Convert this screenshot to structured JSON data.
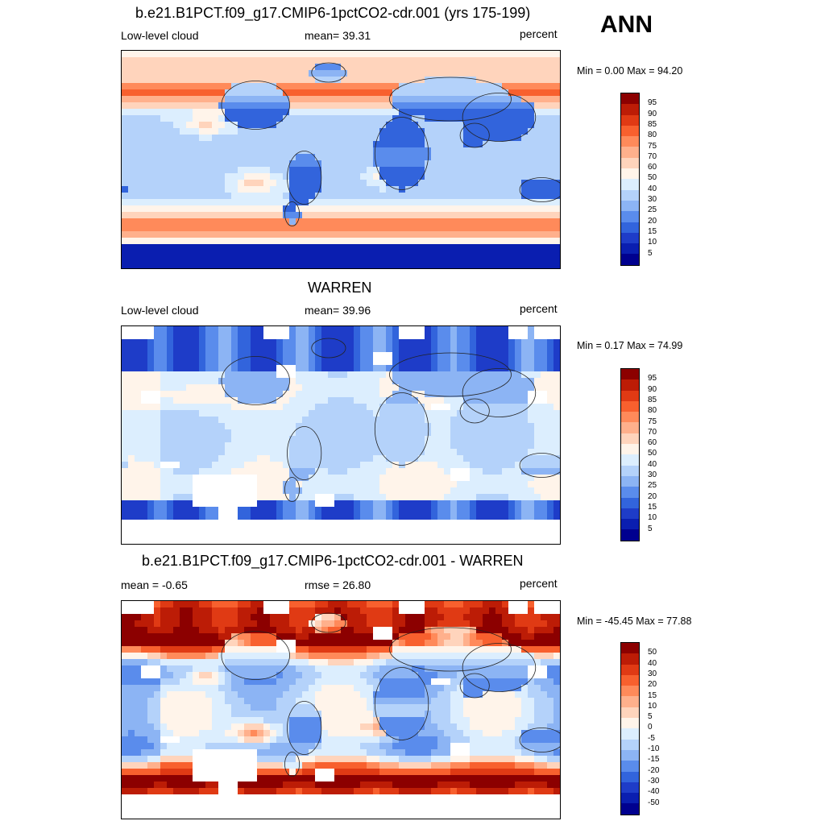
{
  "season": "ANN",
  "palette_warm_cool": [
    "#00008f",
    "#0a1eb0",
    "#1e3cc8",
    "#3264dc",
    "#5a8cec",
    "#8cb4f4",
    "#b4d2fa",
    "#dceefe",
    "#fff4ea",
    "#ffd4bc",
    "#ffb08c",
    "#ff8a5a",
    "#f8602e",
    "#e03a14",
    "#bc1c06",
    "#8c0000"
  ],
  "panels": [
    {
      "title": "b.e21.B1PCT.f09_g17.CMIP6-1pctCO2-cdr.001 (yrs 175-199)",
      "left_label": "Low-level cloud",
      "center_label": "mean=  39.31",
      "right_label": "percent",
      "minmax": "Min =   0.00 Max =  94.20",
      "colorbar_levels": [
        "95",
        "90",
        "85",
        "80",
        "75",
        "70",
        "60",
        "50",
        "40",
        "30",
        "25",
        "20",
        "15",
        "10",
        "5"
      ],
      "chart_data": {
        "type": "heatmap",
        "field": "Low-level cloud",
        "units": "percent",
        "mean": 39.31,
        "min": 0.0,
        "max": 94.2
      }
    },
    {
      "title": "WARREN",
      "left_label": "Low-level cloud",
      "center_label": "mean=  39.96",
      "right_label": "percent",
      "minmax": "Min =   0.17 Max =  74.99",
      "colorbar_levels": [
        "95",
        "90",
        "85",
        "80",
        "75",
        "70",
        "60",
        "50",
        "40",
        "30",
        "25",
        "20",
        "15",
        "10",
        "5"
      ],
      "chart_data": {
        "type": "heatmap",
        "field": "Low-level cloud",
        "units": "percent",
        "mean": 39.96,
        "min": 0.17,
        "max": 74.99
      }
    },
    {
      "title": "b.e21.B1PCT.f09_g17.CMIP6-1pctCO2-cdr.001 - WARREN",
      "left_label": "mean =  -0.65",
      "center_label": "rmse =  26.80",
      "right_label": "percent",
      "minmax": "Min = -45.45 Max =  77.88",
      "colorbar_levels": [
        "50",
        "40",
        "30",
        "20",
        "15",
        "10",
        "5",
        "0",
        "-5",
        "-10",
        "-15",
        "-20",
        "-30",
        "-40",
        "-50"
      ],
      "chart_data": {
        "type": "heatmap",
        "field": "difference",
        "units": "percent",
        "mean": -0.65,
        "rmse": 26.8,
        "min": -45.45,
        "max": 77.88
      }
    }
  ]
}
